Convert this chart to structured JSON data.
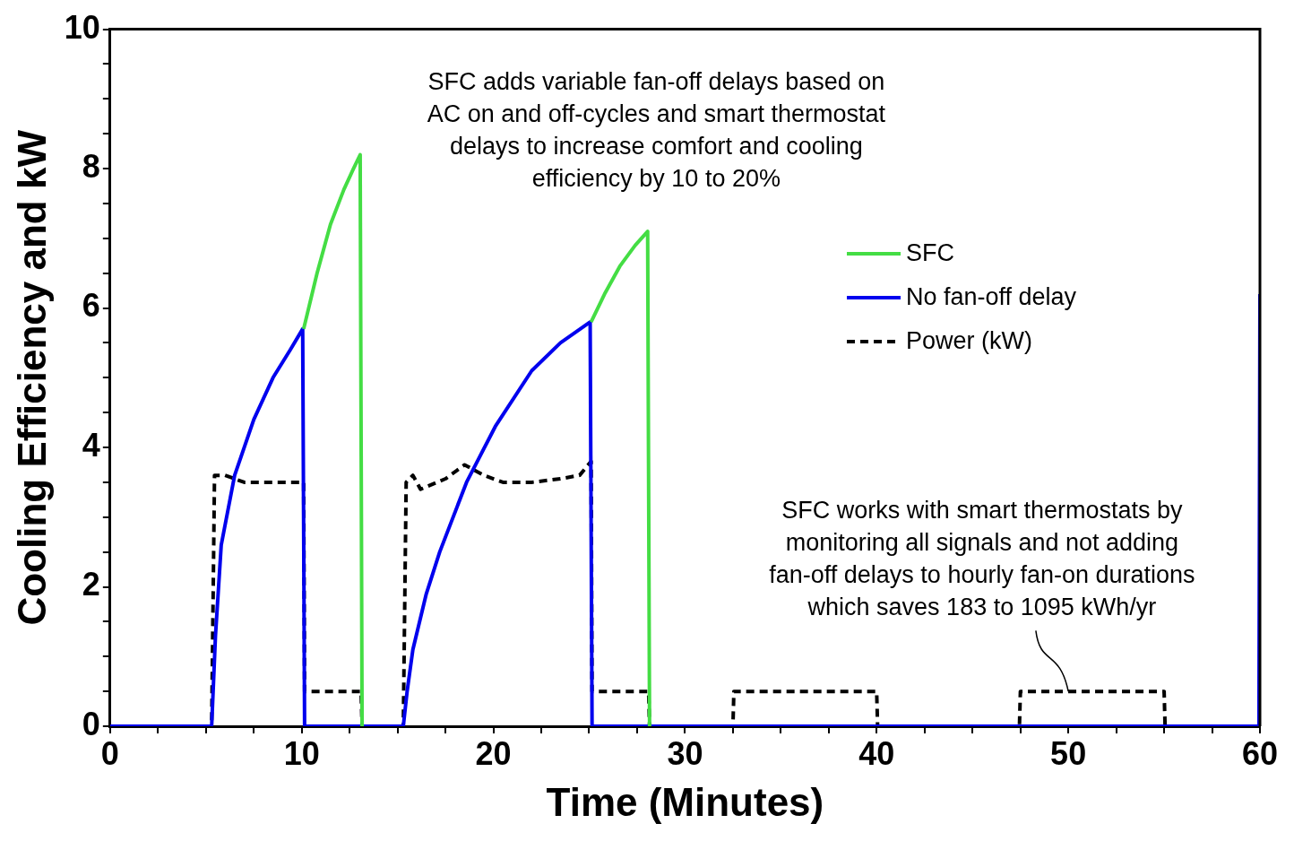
{
  "chart_data": {
    "type": "line",
    "xlabel": "Time (Minutes)",
    "ylabel": "Cooling Efficiency and kW",
    "xlim": [
      0,
      60
    ],
    "ylim": [
      0,
      10
    ],
    "xticks": [
      0,
      {
        "value": 2.5,
        "label": null
      },
      {
        "value": 5,
        "label": null
      },
      {
        "value": 7.5,
        "label": null
      },
      10,
      {
        "value": 12.5,
        "label": null
      },
      {
        "value": 15,
        "label": null
      },
      {
        "value": 17.5,
        "label": null
      },
      20,
      {
        "value": 22.5,
        "label": null
      },
      {
        "value": 25,
        "label": null
      },
      {
        "value": 27.5,
        "label": null
      },
      30,
      {
        "value": 32.5,
        "label": null
      },
      {
        "value": 35,
        "label": null
      },
      {
        "value": 37.5,
        "label": null
      },
      40,
      {
        "value": 42.5,
        "label": null
      },
      {
        "value": 45,
        "label": null
      },
      {
        "value": 47.5,
        "label": null
      },
      50,
      {
        "value": 52.5,
        "label": null
      },
      {
        "value": 55,
        "label": null
      },
      {
        "value": 57.5,
        "label": null
      },
      60
    ],
    "yticks": [
      0,
      {
        "value": 0.5,
        "label": null
      },
      {
        "value": 1,
        "label": null
      },
      {
        "value": 1.5,
        "label": null
      },
      2,
      {
        "value": 2.5,
        "label": null
      },
      {
        "value": 3,
        "label": null
      },
      {
        "value": 3.5,
        "label": null
      },
      4,
      {
        "value": 4.5,
        "label": null
      },
      {
        "value": 5,
        "label": null
      },
      {
        "value": 5.5,
        "label": null
      },
      6,
      {
        "value": 6.5,
        "label": null
      },
      {
        "value": 7,
        "label": null
      },
      {
        "value": 7.5,
        "label": null
      },
      8,
      {
        "value": 8.5,
        "label": null
      },
      {
        "value": 9,
        "label": null
      },
      {
        "value": 9.5,
        "label": null
      },
      10
    ],
    "grid": false,
    "legend": "top right",
    "marker": "none",
    "series": [
      {
        "name": "SFC",
        "color": "#44dd44",
        "line_style": "solid",
        "x": [
          10.1,
          10.8,
          11.5,
          12.2,
          12.7,
          13.05,
          13.15,
          null,
          25.1,
          25.8,
          26.6,
          27.4,
          28.05,
          28.15
        ],
        "values": [
          5.7,
          6.5,
          7.2,
          7.7,
          8.0,
          8.2,
          0,
          null,
          5.8,
          6.2,
          6.6,
          6.9,
          7.1,
          0
        ]
      },
      {
        "name": "No fan-off delay",
        "color": "#0000ee",
        "line_style": "solid",
        "x": [
          0,
          5.3,
          5.5,
          5.8,
          6.5,
          7.5,
          8.5,
          9.4,
          10.05,
          10.15,
          15.3,
          15.5,
          15.8,
          16.5,
          17.2,
          18.6,
          20.1,
          22,
          23.5,
          25.05,
          25.15,
          59.95,
          60
        ],
        "values": [
          0,
          0,
          1.3,
          2.6,
          3.6,
          4.4,
          5.0,
          5.4,
          5.7,
          0,
          0,
          0.5,
          1.1,
          1.9,
          2.5,
          3.5,
          4.3,
          5.1,
          5.5,
          5.8,
          0,
          0,
          6.2
        ]
      },
      {
        "name": "Power (kW)",
        "color": "#000000",
        "line_style": "dashed",
        "x": [
          0,
          5.3,
          5.45,
          6,
          7,
          8,
          9,
          10.1,
          10.15,
          13.1,
          13.15,
          15.3,
          15.45,
          15.8,
          16.2,
          17.5,
          18.5,
          19.5,
          20.5,
          22,
          23.5,
          24.5,
          25.1,
          25.15,
          28.1,
          28.15,
          32.5,
          32.55,
          40,
          40.05,
          47.45,
          47.5,
          55,
          55.05,
          60
        ],
        "values": [
          0,
          0,
          3.6,
          3.6,
          3.5,
          3.5,
          3.5,
          3.5,
          0.5,
          0.5,
          0,
          0,
          3.5,
          3.6,
          3.4,
          3.55,
          3.75,
          3.6,
          3.5,
          3.5,
          3.55,
          3.6,
          3.8,
          0.5,
          0.5,
          0,
          0,
          0.5,
          0.5,
          0,
          0,
          0.5,
          0.5,
          0,
          0
        ]
      }
    ],
    "annotations": [
      "SFC adds variable fan-off delays based on\nAC on and off-cycles and smart thermostat\ndelays to increase comfort and cooling\nefficiency by 10 to 20%",
      {
        "text": "SFC works with smart thermostats by\nmonitoring all signals and not adding\nfan-off delays to hourly fan-on durations\nwhich saves 183 to 1095 kWh/yr",
        "x": 50,
        "y": 0.5
      }
    ]
  }
}
